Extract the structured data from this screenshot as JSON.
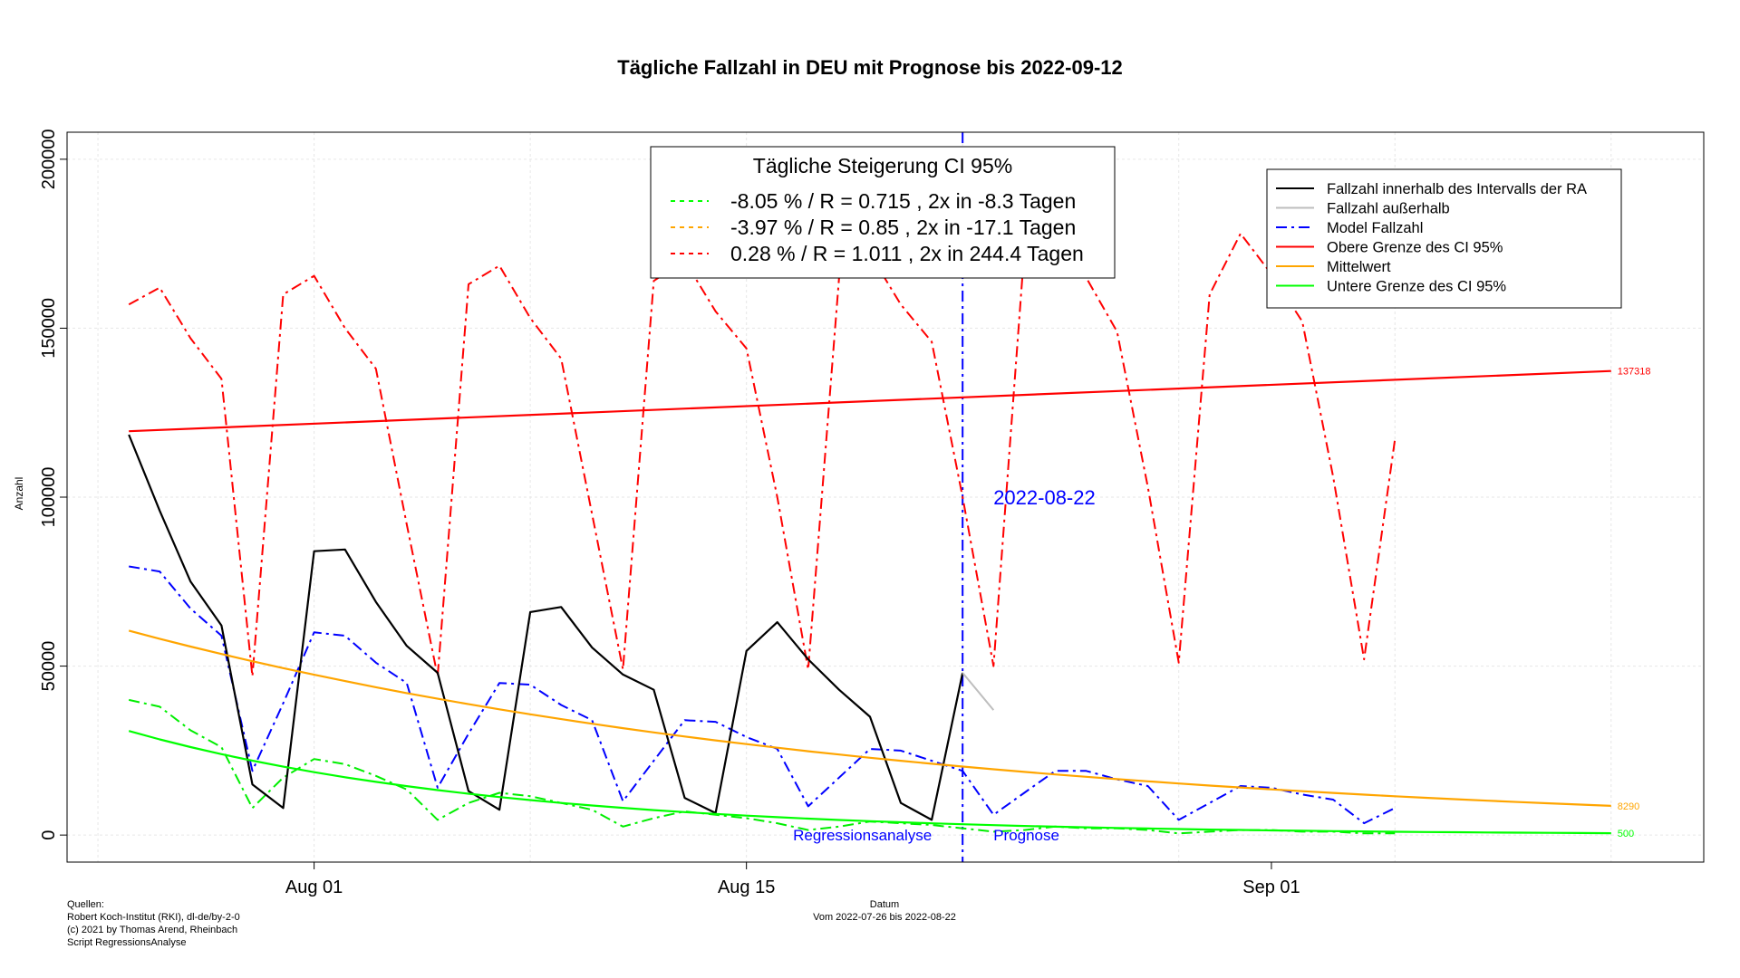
{
  "chart_data": {
    "type": "line",
    "title": "Tägliche Fallzahl in DEU mit Prognose bis 2022-09-12",
    "ylabel": "Anzahl",
    "xlabel": "Datum",
    "xlabel_sub": "Vom 2022-07-26 bis 2022-08-22",
    "xlim": [
      "2022-07-24",
      "2022-09-15"
    ],
    "ylim": [
      -8000,
      208000
    ],
    "x_ticks": [
      {
        "date": "2022-08-01",
        "label": "Aug 01"
      },
      {
        "date": "2022-08-15",
        "label": "Aug 15"
      },
      {
        "date": "2022-09-01",
        "label": "Sep 01"
      }
    ],
    "y_ticks": [
      {
        "value": 0,
        "label": "0"
      },
      {
        "value": 50000,
        "label": "50000"
      },
      {
        "value": 100000,
        "label": "100000"
      },
      {
        "value": 150000,
        "label": "150000"
      },
      {
        "value": 200000,
        "label": "200000"
      }
    ],
    "grid": true,
    "cut_date": "2022-08-22",
    "cut_label": "2022-08-22",
    "region_left_label": "Regressionsanalyse",
    "region_right_label": "Prognose",
    "start_date": "2022-07-26",
    "series": [
      {
        "key": "upper_model",
        "color": "#ff0000",
        "dash": "dashdot",
        "values": [
          157000,
          162000,
          147000,
          135000,
          47000,
          160000,
          165500,
          150000,
          138000,
          92000,
          47000,
          163000,
          168500,
          153000,
          141000,
          95000,
          49000,
          164000,
          170000,
          155000,
          144000,
          100000,
          49000,
          165000,
          172000,
          157000,
          146000,
          100000,
          50000,
          173000,
          179000,
          165000,
          149000,
          103000,
          51000,
          160000,
          178000,
          166000,
          152000,
          106000,
          52000,
          117000
        ]
      },
      {
        "key": "lower_model",
        "color": "#00ee00",
        "dash": "dashdot",
        "values": [
          40000,
          38000,
          31000,
          26000,
          8000,
          17000,
          22500,
          21000,
          17500,
          13500,
          4500,
          9500,
          12500,
          11500,
          9500,
          7500,
          2500,
          5000,
          7000,
          6000,
          5000,
          3500,
          1500,
          2500,
          4000,
          3500,
          3000,
          2000,
          1000,
          1500,
          2500,
          2000,
          2000,
          1500,
          500,
          1000,
          1500,
          1500,
          1000,
          1000,
          500,
          500
        ]
      },
      {
        "key": "model",
        "color": "#0000ff",
        "dash": "dashdot",
        "values": [
          79500,
          78000,
          67000,
          59000,
          19000,
          39000,
          60000,
          59000,
          51000,
          45000,
          14000,
          30000,
          45000,
          44500,
          38500,
          34000,
          10000,
          22000,
          34000,
          33500,
          29000,
          25500,
          8500,
          17000,
          25500,
          25000,
          22000,
          19000,
          6000,
          12500,
          19000,
          19000,
          16500,
          14500,
          4500,
          9500,
          14500,
          14000,
          12000,
          10500,
          3500,
          8000
        ]
      },
      {
        "key": "cases",
        "label": "Fallzahl innerhalb des Intervalls der RA",
        "color": "#000000",
        "dash": "solid",
        "width": 2.2,
        "values": [
          118500,
          96000,
          75000,
          62000,
          15000,
          8000,
          84000,
          84500,
          69000,
          56000,
          48000,
          13000,
          7500,
          66000,
          67500,
          55500,
          47500,
          43000,
          11000,
          6500,
          54500,
          63000,
          52000,
          43000,
          35000,
          9500,
          4500,
          48000
        ]
      },
      {
        "key": "outside",
        "label": "Fallzahl außerhalb",
        "color": "#bebebe",
        "dash": "solid",
        "start_date": "2022-08-22",
        "values": [
          48000,
          37000
        ]
      },
      {
        "key": "upper",
        "label": "Obere Grenze des CI 95%",
        "color": "#ff0000",
        "dash": "solid",
        "width": 2.2,
        "points": [
          {
            "date": "2022-07-26",
            "value": 119500
          },
          {
            "date": "2022-09-12",
            "value": 137318
          }
        ],
        "end_label": "137318"
      },
      {
        "key": "mean",
        "label": "Mittelwert",
        "color": "#ffa500",
        "dash": "solid",
        "width": 2.2,
        "growth": -0.0397,
        "start_value": 60500,
        "end_label": "8290"
      },
      {
        "key": "lower",
        "label": "Untere Grenze des CI 95%",
        "color": "#00ff00",
        "dash": "solid",
        "width": 2.2,
        "growth": -0.0805,
        "start_value": 30800,
        "end_label": "500"
      }
    ],
    "legend": {
      "placement": "top-right",
      "entries": [
        {
          "label": "Fallzahl innerhalb des Intervalls der RA",
          "color": "#000000",
          "dash": "solid"
        },
        {
          "label": "Fallzahl außerhalb",
          "color": "#bebebe",
          "dash": "solid"
        },
        {
          "label": "Model Fallzahl",
          "color": "#0000ff",
          "dash": "dashdot"
        },
        {
          "label": "Obere Grenze des CI 95%",
          "color": "#ff0000",
          "dash": "solid"
        },
        {
          "label": "Mittelwert",
          "color": "#ffa500",
          "dash": "solid"
        },
        {
          "label": "Untere Grenze des CI 95%",
          "color": "#00ff00",
          "dash": "solid"
        }
      ]
    },
    "growth_box": {
      "title": "Tägliche Steigerung CI  95%",
      "rows": [
        {
          "text": "-8.05 % / R = 0.715 , 2x in -8.3 Tagen",
          "color": "#00ff00"
        },
        {
          "text": "-3.97 % / R = 0.85 , 2x in -17.1 Tagen",
          "color": "#ffa500"
        },
        {
          "text": "0.28 % / R = 1.011 , 2x in 244.4 Tagen",
          "color": "#ff0000"
        }
      ]
    }
  },
  "sources": [
    "Quellen:",
    "Robert Koch-Institut (RKI), dl-de/by-2-0",
    "(c) 2021 by Thomas Arend, Rheinbach",
    "Script RegressionsAnalyse"
  ]
}
